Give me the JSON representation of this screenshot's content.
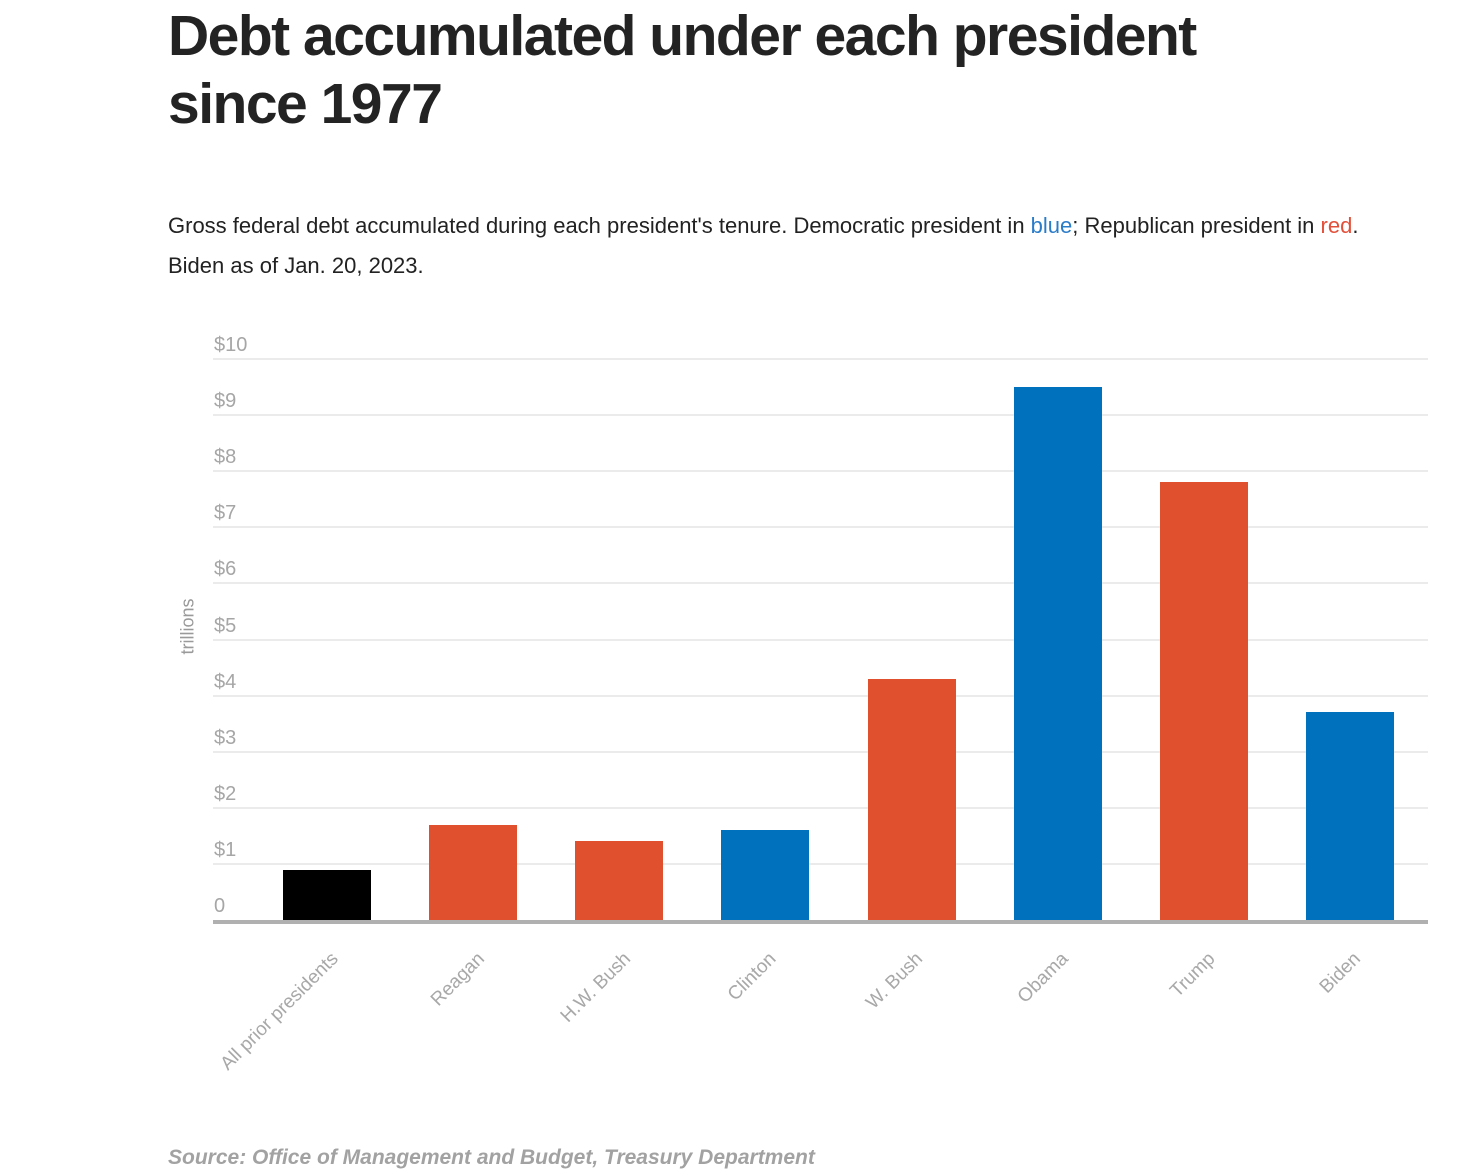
{
  "title": "Debt accumulated under each president since 1977",
  "subtitle_segments": [
    {
      "text": "Gross federal debt accumulated during each president's tenure. Democratic president in ",
      "color": ""
    },
    {
      "text": "blue",
      "color": "#2a7cc9"
    },
    {
      "text": "; Republican president in ",
      "color": ""
    },
    {
      "text": "red",
      "color": "#e2503a"
    },
    {
      "text": ". Biden as of Jan. 20, 2023.",
      "color": ""
    }
  ],
  "source_note": "Source: Office of Management and Budget, Treasury Department",
  "colors": {
    "democrat_bar": "#0071bc",
    "republican_bar": "#e0502f",
    "prior_bar": "#000000",
    "gridline": "#ebebeb",
    "axis_line": "#b0b0b0",
    "tick_text": "#a6a6a6"
  },
  "chart_data": {
    "type": "bar",
    "title": "Debt accumulated under each president since 1977",
    "xlabel": "",
    "ylabel": "trillions",
    "ylim": [
      0,
      10
    ],
    "grid": true,
    "legend": "none",
    "ytick_labels": [
      "0",
      "$1",
      "$2",
      "$3",
      "$4",
      "$5",
      "$6",
      "$7",
      "$8",
      "$9",
      "$10"
    ],
    "categories": [
      "All prior presidents",
      "Reagan",
      "H.W. Bush",
      "Clinton",
      "W. Bush",
      "Obama",
      "Trump",
      "Biden"
    ],
    "values": [
      0.9,
      1.7,
      1.4,
      1.6,
      4.3,
      9.5,
      7.8,
      3.7
    ],
    "party": [
      "prior",
      "republican",
      "republican",
      "democrat",
      "republican",
      "democrat",
      "republican",
      "democrat"
    ],
    "bar_colors": [
      "#000000",
      "#e0502f",
      "#e0502f",
      "#0071bc",
      "#e0502f",
      "#0071bc",
      "#e0502f",
      "#0071bc"
    ]
  }
}
